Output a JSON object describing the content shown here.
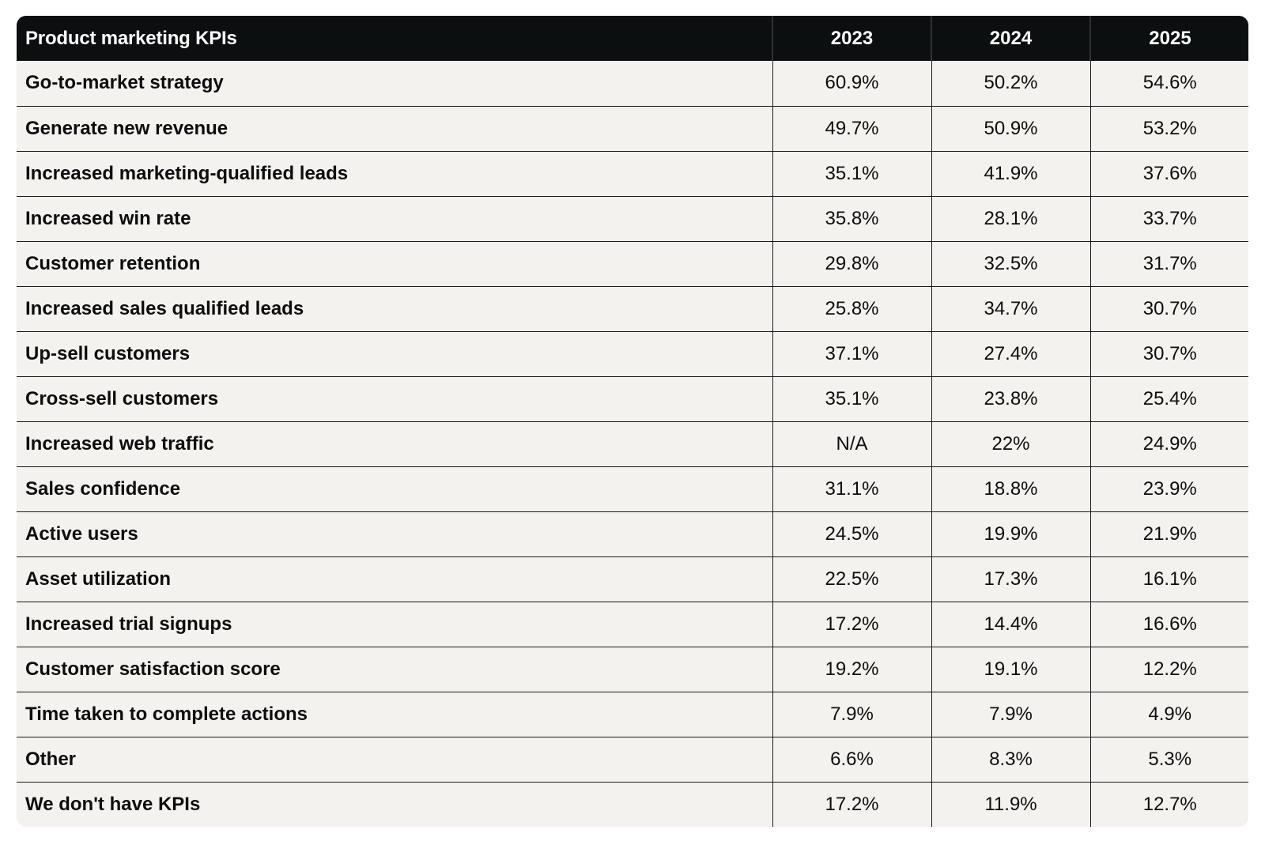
{
  "table": {
    "header": {
      "label": "Product marketing KPIs",
      "years": [
        "2023",
        "2024",
        "2025"
      ]
    },
    "rows": [
      {
        "label": "Go-to-market strategy",
        "values": [
          "60.9%",
          "50.2%",
          "54.6%"
        ]
      },
      {
        "label": "Generate new revenue",
        "values": [
          "49.7%",
          "50.9%",
          "53.2%"
        ]
      },
      {
        "label": "Increased marketing-qualified leads",
        "values": [
          "35.1%",
          "41.9%",
          "37.6%"
        ]
      },
      {
        "label": "Increased win rate",
        "values": [
          "35.8%",
          "28.1%",
          "33.7%"
        ]
      },
      {
        "label": "Customer retention",
        "values": [
          "29.8%",
          "32.5%",
          "31.7%"
        ]
      },
      {
        "label": "Increased sales qualified leads",
        "values": [
          "25.8%",
          "34.7%",
          "30.7%"
        ]
      },
      {
        "label": "Up-sell customers",
        "values": [
          "37.1%",
          "27.4%",
          "30.7%"
        ]
      },
      {
        "label": "Cross-sell customers",
        "values": [
          "35.1%",
          "23.8%",
          "25.4%"
        ]
      },
      {
        "label": "Increased web traffic",
        "values": [
          "N/A",
          "22%",
          "24.9%"
        ]
      },
      {
        "label": "Sales confidence",
        "values": [
          "31.1%",
          "18.8%",
          "23.9%"
        ]
      },
      {
        "label": "Active users",
        "values": [
          "24.5%",
          "19.9%",
          "21.9%"
        ]
      },
      {
        "label": "Asset utilization",
        "values": [
          "22.5%",
          "17.3%",
          "16.1%"
        ]
      },
      {
        "label": "Increased trial signups",
        "values": [
          "17.2%",
          "14.4%",
          "16.6%"
        ]
      },
      {
        "label": "Customer satisfaction score",
        "values": [
          "19.2%",
          "19.1%",
          "12.2%"
        ]
      },
      {
        "label": "Time taken to complete actions",
        "values": [
          "7.9%",
          "7.9%",
          "4.9%"
        ]
      },
      {
        "label": "Other",
        "values": [
          "6.6%",
          "8.3%",
          "5.3%"
        ]
      },
      {
        "label": "We don't have KPIs",
        "values": [
          "17.2%",
          "11.9%",
          "12.7%"
        ]
      }
    ]
  },
  "colors": {
    "header_bg": "#0b0f0f",
    "header_text": "#ffffff",
    "body_bg": "#f3f2ef",
    "rule": "#1a1a1a"
  }
}
